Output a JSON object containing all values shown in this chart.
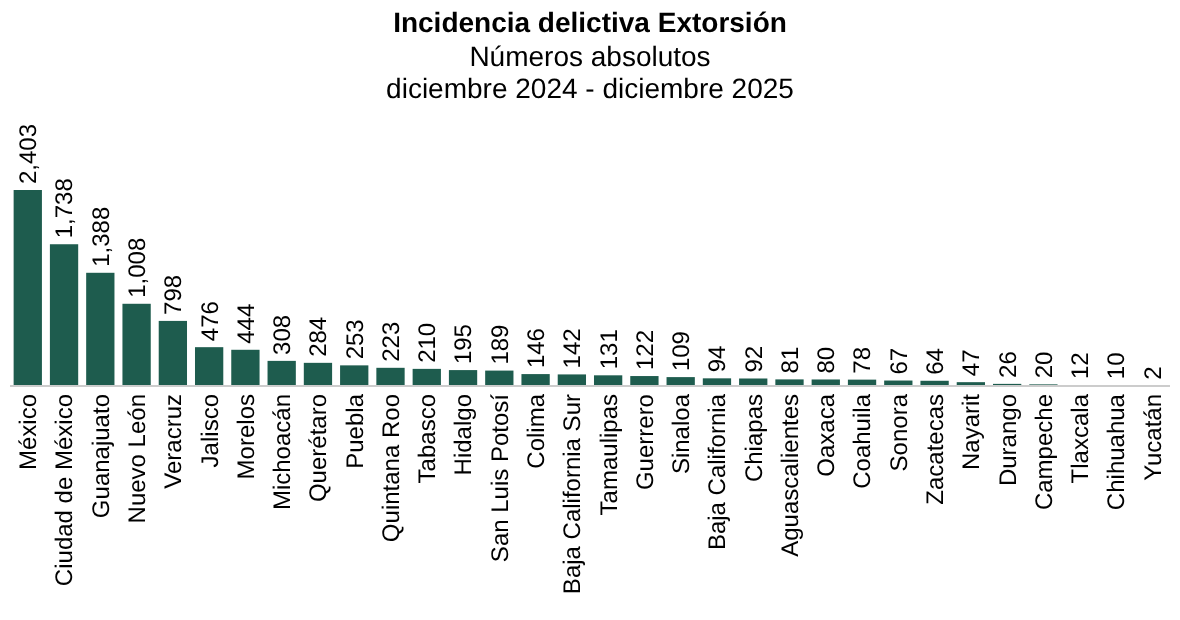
{
  "chart_data": {
    "type": "bar",
    "title": "Incidencia delictiva Extorsión",
    "subtitle": "Números absolutos\ndiciembre 2024 - diciembre 2025",
    "categories": [
      "México",
      "Ciudad de México",
      "Guanajuato",
      "Nuevo León",
      "Veracruz",
      "Jalisco",
      "Morelos",
      "Michoacán",
      "Querétaro",
      "Puebla",
      "Quintana Roo",
      "Tabasco",
      "Hidalgo",
      "San Luis Potosí",
      "Colima",
      "Baja California Sur",
      "Tamaulipas",
      "Guerrero",
      "Sinaloa",
      "Baja California",
      "Chiapas",
      "Aguascalientes",
      "Oaxaca",
      "Coahuila",
      "Sonora",
      "Zacatecas",
      "Nayarit",
      "Durango",
      "Campeche",
      "Tlaxcala",
      "Chihuahua",
      "Yucatán"
    ],
    "values": [
      2403,
      1738,
      1388,
      1008,
      798,
      476,
      444,
      308,
      284,
      253,
      223,
      210,
      195,
      189,
      146,
      142,
      131,
      122,
      109,
      94,
      92,
      81,
      80,
      78,
      67,
      64,
      47,
      26,
      20,
      12,
      10,
      2
    ],
    "value_labels": [
      "2,403",
      "1,738",
      "1,388",
      "1,008",
      "798",
      "476",
      "444",
      "308",
      "284",
      "253",
      "223",
      "210",
      "195",
      "189",
      "146",
      "142",
      "131",
      "122",
      "109",
      "94",
      "92",
      "81",
      "80",
      "78",
      "67",
      "64",
      "47",
      "26",
      "20",
      "12",
      "10",
      "2"
    ],
    "color": "#1e5c4e",
    "tick_labels": "x"
  }
}
